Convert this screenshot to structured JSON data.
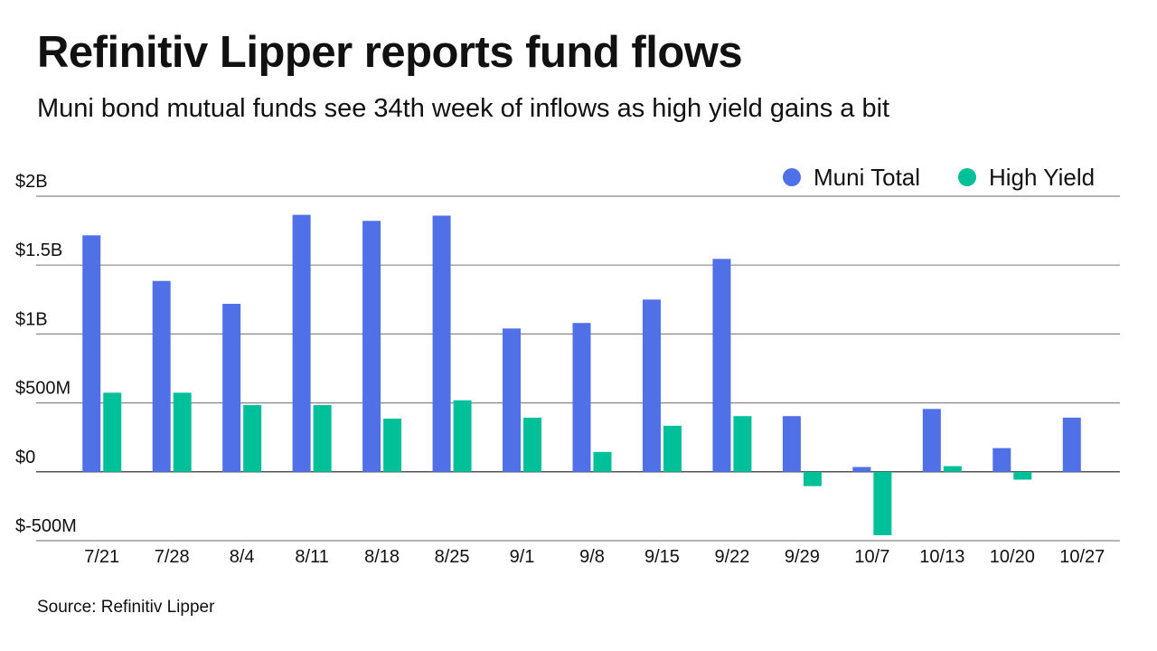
{
  "header": {
    "title": "Refinitiv Lipper reports fund flows",
    "subtitle": "Muni bond mutual funds see 34th week of inflows as high yield gains a bit"
  },
  "footer": {
    "source": "Source: Refinitiv Lipper"
  },
  "colors": {
    "muni_total": "#5070e8",
    "high_yield": "#00c09a",
    "gridline": "#888888",
    "zero_line": "#555555"
  },
  "chart_data": {
    "type": "bar",
    "title": "Refinitiv Lipper reports fund flows",
    "subtitle": "Muni bond mutual funds see 34th week of inflows as high yield gains a bit",
    "xlabel": "",
    "ylabel": "",
    "units": "USD millions",
    "ylim": [
      -500,
      2000
    ],
    "yticks": [
      -500,
      0,
      500,
      1000,
      1500,
      2000
    ],
    "ytick_labels": [
      "$-500M",
      "$0",
      "$500M",
      "$1B",
      "$1.5B",
      "$2B"
    ],
    "grid": true,
    "legend_position": "top-right",
    "categories": [
      "7/21",
      "7/28",
      "8/4",
      "8/11",
      "8/18",
      "8/25",
      "9/1",
      "9/8",
      "9/15",
      "9/22",
      "9/29",
      "10/7",
      "10/13",
      "10/20",
      "10/27"
    ],
    "series": [
      {
        "name": "Muni Total",
        "color": "#5070e8",
        "values": [
          1716,
          1385,
          1219,
          1865,
          1821,
          1859,
          1040,
          1080,
          1250,
          1545,
          404,
          35,
          456,
          172,
          393
        ]
      },
      {
        "name": "High Yield",
        "color": "#00c09a",
        "values": [
          574,
          574,
          484,
          484,
          386,
          519,
          393,
          144,
          334,
          404,
          -104,
          -460,
          41,
          -57,
          0
        ]
      }
    ]
  }
}
